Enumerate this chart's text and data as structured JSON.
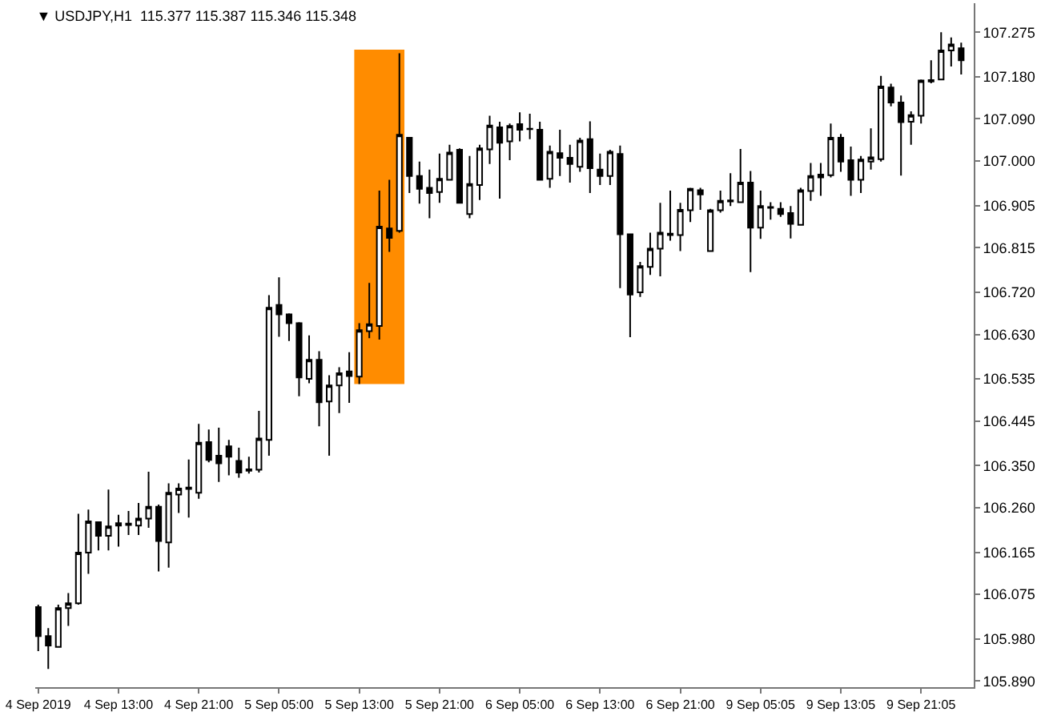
{
  "chart_data": {
    "type": "candlestick",
    "title": "▼ USDJPY,H1  115.377 115.387 115.346 115.348",
    "categories": [
      "4 Sep 2019",
      null,
      null,
      null,
      null,
      null,
      null,
      null,
      "4 Sep 13:00",
      null,
      null,
      null,
      null,
      null,
      null,
      null,
      "4 Sep 21:00",
      null,
      null,
      null,
      null,
      null,
      null,
      null,
      "5 Sep 05:00",
      null,
      null,
      null,
      null,
      null,
      null,
      null,
      "5 Sep 13:00",
      null,
      null,
      null,
      null,
      null,
      null,
      null,
      "5 Sep 21:00",
      null,
      null,
      null,
      null,
      null,
      null,
      null,
      "6 Sep 05:00",
      null,
      null,
      null,
      null,
      null,
      null,
      null,
      "6 Sep 13:00",
      null,
      null,
      null,
      null,
      null,
      null,
      null,
      "6 Sep 21:00",
      null,
      null,
      null,
      null,
      null,
      null,
      null,
      "9 Sep 05:05",
      null,
      null,
      null,
      null,
      null,
      null,
      null,
      "9 Sep 13:05",
      null,
      null,
      null,
      null,
      null,
      null,
      null,
      "9 Sep 21:05",
      null,
      null,
      null,
      null
    ],
    "ohlc": [
      [
        106.048,
        106.053,
        105.954,
        105.986
      ],
      [
        105.986,
        106.003,
        105.916,
        105.966
      ],
      [
        105.963,
        106.053,
        105.961,
        106.046
      ],
      [
        106.046,
        106.078,
        106.008,
        106.056
      ],
      [
        106.056,
        106.247,
        106.053,
        106.164
      ],
      [
        106.164,
        106.256,
        106.119,
        106.231
      ],
      [
        106.229,
        106.231,
        106.169,
        106.2
      ],
      [
        106.2,
        106.299,
        106.169,
        106.22
      ],
      [
        106.222,
        106.245,
        106.177,
        106.227
      ],
      [
        106.223,
        106.253,
        106.202,
        106.226
      ],
      [
        106.222,
        106.27,
        106.202,
        106.237
      ],
      [
        106.237,
        106.337,
        106.217,
        106.262
      ],
      [
        106.262,
        106.267,
        106.124,
        106.189
      ],
      [
        106.186,
        106.312,
        106.132,
        106.292
      ],
      [
        106.288,
        106.312,
        106.249,
        106.301
      ],
      [
        106.3,
        106.363,
        106.239,
        106.303
      ],
      [
        106.292,
        106.439,
        106.279,
        106.399
      ],
      [
        106.4,
        106.427,
        106.357,
        106.362
      ],
      [
        106.371,
        106.431,
        106.315,
        106.355
      ],
      [
        106.391,
        106.405,
        106.329,
        106.369
      ],
      [
        106.36,
        106.388,
        106.324,
        106.335
      ],
      [
        106.339,
        106.369,
        106.333,
        106.342
      ],
      [
        106.341,
        106.467,
        106.335,
        106.408
      ],
      [
        106.405,
        106.714,
        106.371,
        106.687
      ],
      [
        106.693,
        106.752,
        106.625,
        106.673
      ],
      [
        106.673,
        106.675,
        106.616,
        106.654
      ],
      [
        106.654,
        106.656,
        106.498,
        106.538
      ],
      [
        106.535,
        106.628,
        106.526,
        106.576
      ],
      [
        106.576,
        106.594,
        106.434,
        106.485
      ],
      [
        106.487,
        106.543,
        106.371,
        106.521
      ],
      [
        106.521,
        106.56,
        106.462,
        106.547
      ],
      [
        106.551,
        106.592,
        106.484,
        106.541
      ],
      [
        106.54,
        106.654,
        106.524,
        106.639
      ],
      [
        106.637,
        106.74,
        106.622,
        106.652
      ],
      [
        106.648,
        106.937,
        106.619,
        106.86
      ],
      [
        106.856,
        106.96,
        106.806,
        106.836
      ],
      [
        106.851,
        107.23,
        106.847,
        107.056
      ],
      [
        107.05,
        107.05,
        106.932,
        106.968
      ],
      [
        106.968,
        106.999,
        106.909,
        106.941
      ],
      [
        106.943,
        106.982,
        106.878,
        106.932
      ],
      [
        106.934,
        107.016,
        106.911,
        106.962
      ],
      [
        106.96,
        107.035,
        106.96,
        107.018
      ],
      [
        107.024,
        107.027,
        106.909,
        106.911
      ],
      [
        106.887,
        107.011,
        106.878,
        106.951
      ],
      [
        106.949,
        107.035,
        106.917,
        107.027
      ],
      [
        107.025,
        107.097,
        106.994,
        107.076
      ],
      [
        107.072,
        107.084,
        106.92,
        107.039
      ],
      [
        107.042,
        107.08,
        107.002,
        107.075
      ],
      [
        107.079,
        107.104,
        107.042,
        107.067
      ],
      [
        107.069,
        107.101,
        107.047,
        107.068
      ],
      [
        107.067,
        107.084,
        106.959,
        106.96
      ],
      [
        106.962,
        107.033,
        106.943,
        107.02
      ],
      [
        107.017,
        107.067,
        106.968,
        107.007
      ],
      [
        107.007,
        107.035,
        106.954,
        106.994
      ],
      [
        106.988,
        107.05,
        106.977,
        107.044
      ],
      [
        107.047,
        107.085,
        106.932,
        106.985
      ],
      [
        106.982,
        107.016,
        106.949,
        106.968
      ],
      [
        106.968,
        107.024,
        106.949,
        107.02
      ],
      [
        107.015,
        107.033,
        106.729,
        106.844
      ],
      [
        106.844,
        106.845,
        106.624,
        106.715
      ],
      [
        106.72,
        106.785,
        106.71,
        106.776
      ],
      [
        106.774,
        106.847,
        106.757,
        106.813
      ],
      [
        106.813,
        106.911,
        106.754,
        106.847
      ],
      [
        106.842,
        106.937,
        106.83,
        106.845
      ],
      [
        106.842,
        106.911,
        106.808,
        106.896
      ],
      [
        106.895,
        106.943,
        106.87,
        106.941
      ],
      [
        106.938,
        106.943,
        106.896,
        106.929
      ],
      [
        106.808,
        106.898,
        106.806,
        106.895
      ],
      [
        106.895,
        106.937,
        106.89,
        106.915
      ],
      [
        106.914,
        106.974,
        106.904,
        106.916
      ],
      [
        106.912,
        107.026,
        106.911,
        106.954
      ],
      [
        106.954,
        106.979,
        106.763,
        106.858
      ],
      [
        106.858,
        106.937,
        106.834,
        106.904
      ],
      [
        106.902,
        106.912,
        106.875,
        106.9
      ],
      [
        106.898,
        106.912,
        106.881,
        106.887
      ],
      [
        106.889,
        106.904,
        106.835,
        106.866
      ],
      [
        106.864,
        106.943,
        106.863,
        106.938
      ],
      [
        106.936,
        106.996,
        106.915,
        106.968
      ],
      [
        106.965,
        106.996,
        106.926,
        106.971
      ],
      [
        106.97,
        107.08,
        106.965,
        107.05
      ],
      [
        107.05,
        107.058,
        106.977,
        106.999
      ],
      [
        107.002,
        107.031,
        106.926,
        106.96
      ],
      [
        106.96,
        107.011,
        106.932,
        107.003
      ],
      [
        106.999,
        107.07,
        106.982,
        107.008
      ],
      [
        107.004,
        107.182,
        106.999,
        107.159
      ],
      [
        107.157,
        107.165,
        107.117,
        107.125
      ],
      [
        107.125,
        107.14,
        106.969,
        107.083
      ],
      [
        107.084,
        107.106,
        107.035,
        107.098
      ],
      [
        107.097,
        107.174,
        107.08,
        107.172
      ],
      [
        107.17,
        107.215,
        107.166,
        107.173
      ],
      [
        107.174,
        107.275,
        107.173,
        107.236
      ],
      [
        107.236,
        107.264,
        107.202,
        107.249
      ],
      [
        107.241,
        107.253,
        107.185,
        107.215
      ]
    ],
    "ylim": [
      105.877,
      107.337
    ],
    "yticks": [
      {
        "value": 105.89,
        "label": "105.890"
      },
      {
        "value": 105.98,
        "label": "105.980"
      },
      {
        "value": 106.075,
        "label": "106.075"
      },
      {
        "value": 106.165,
        "label": "106.165"
      },
      {
        "value": 106.26,
        "label": "106.260"
      },
      {
        "value": 106.35,
        "label": "106.350"
      },
      {
        "value": 106.445,
        "label": "106.445"
      },
      {
        "value": 106.535,
        "label": "106.535"
      },
      {
        "value": 106.63,
        "label": "106.630"
      },
      {
        "value": 106.72,
        "label": "106.720"
      },
      {
        "value": 106.815,
        "label": "106.815"
      },
      {
        "value": 106.905,
        "label": "106.905"
      },
      {
        "value": 107.0,
        "label": "107.000"
      },
      {
        "value": 107.09,
        "label": "107.090"
      },
      {
        "value": 107.18,
        "label": "107.180"
      },
      {
        "value": 107.275,
        "label": "107.275"
      }
    ],
    "bands": [
      {
        "axis": "y",
        "from": 106.524,
        "to": 107.238,
        "color": "#ff8c00"
      }
    ],
    "grid": false
  }
}
